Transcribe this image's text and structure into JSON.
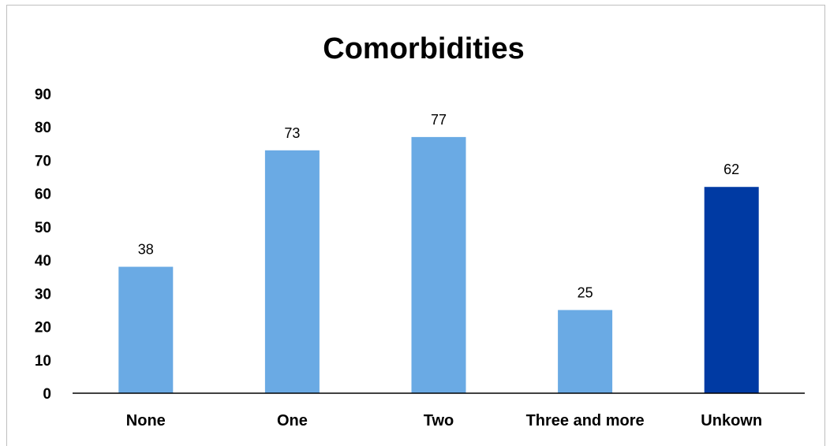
{
  "chart_data": {
    "type": "bar",
    "title": "Comorbidities",
    "xlabel": "",
    "ylabel": "",
    "categories": [
      "None",
      "One",
      "Two",
      "Three and more",
      "Unkown"
    ],
    "values": [
      38,
      73,
      77,
      25,
      62
    ],
    "data_labels": [
      "38",
      "73",
      "77",
      "25",
      "62"
    ],
    "ylim": [
      0,
      90
    ],
    "yticks": [
      "0",
      "10",
      "20",
      "30",
      "40",
      "50",
      "60",
      "70",
      "80",
      "90"
    ],
    "grid": false,
    "legend": "none",
    "colors": [
      "#6aaae4",
      "#6aaae4",
      "#6aaae4",
      "#6aaae4",
      "#003aa3"
    ]
  }
}
